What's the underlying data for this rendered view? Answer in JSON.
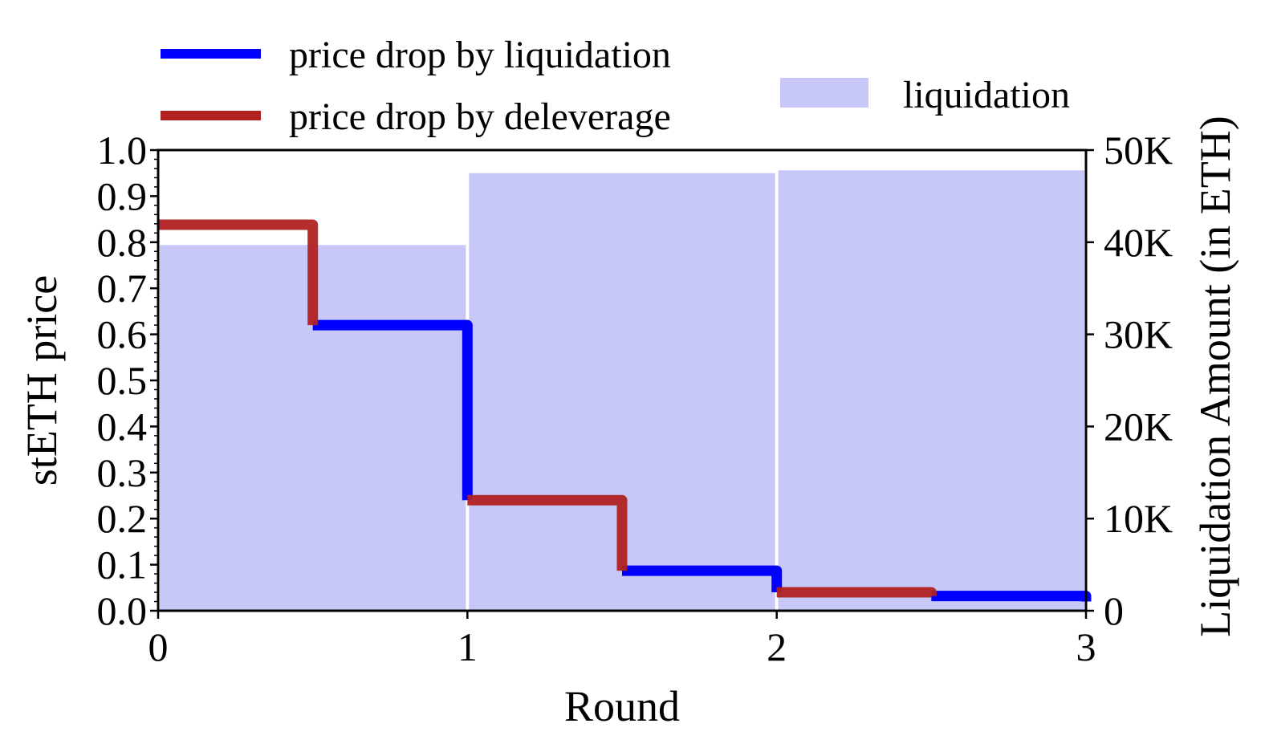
{
  "chart_data": {
    "type": "bar",
    "x_axis": {
      "label": "Round",
      "range": [
        0,
        3
      ],
      "ticks": [
        "0",
        "1",
        "2",
        "3"
      ]
    },
    "y_left": {
      "label": "stETH price",
      "range": [
        0.0,
        1.0
      ],
      "ticks": [
        "0.0",
        "0.1",
        "0.2",
        "0.3",
        "0.4",
        "0.5",
        "0.6",
        "0.7",
        "0.8",
        "0.9",
        "1.0"
      ]
    },
    "y_right": {
      "label": "Liquidation Amount (in ETH)",
      "range": [
        0,
        50000
      ],
      "ticks": [
        "0",
        "10K",
        "20K",
        "30K",
        "40K",
        "50K"
      ]
    },
    "bars": {
      "name": "liquidation",
      "color": "#c8c8f8",
      "axis": "right",
      "values": [
        {
          "x_start": 0,
          "x_end": 1,
          "value": 39700
        },
        {
          "x_start": 1,
          "x_end": 2,
          "value": 47500
        },
        {
          "x_start": 2,
          "x_end": 3,
          "value": 47800
        }
      ]
    },
    "series": [
      {
        "name": "price drop by liquidation",
        "color": "#0000ff",
        "segments": [
          {
            "x": [
              0.5,
              1.0,
              1.0
            ],
            "y": [
              0.62,
              0.62,
              0.24
            ]
          },
          {
            "x": [
              1.5,
              2.0,
              2.0
            ],
            "y": [
              0.087,
              0.087,
              0.04
            ]
          },
          {
            "x": [
              2.5,
              3.0,
              3.0
            ],
            "y": [
              0.032,
              0.032,
              0.02
            ]
          }
        ]
      },
      {
        "name": "price drop by deleverage",
        "color": "#b22222",
        "segments": [
          {
            "x": [
              0.0,
              0.5,
              0.5
            ],
            "y": [
              0.838,
              0.838,
              0.62
            ]
          },
          {
            "x": [
              1.0,
              1.5,
              1.5
            ],
            "y": [
              0.24,
              0.24,
              0.087
            ]
          },
          {
            "x": [
              2.0,
              2.5,
              2.5
            ],
            "y": [
              0.04,
              0.04,
              0.032
            ]
          }
        ]
      }
    ],
    "legend": "top",
    "grid": false
  }
}
